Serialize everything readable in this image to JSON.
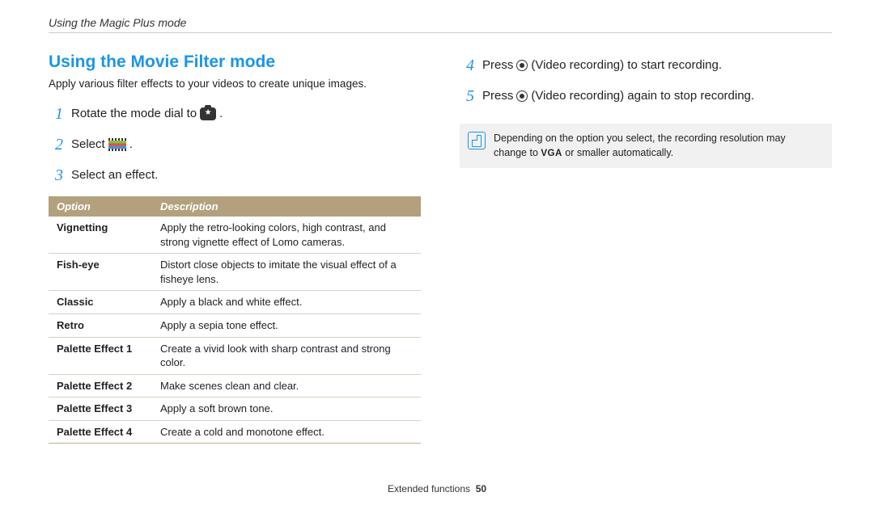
{
  "topline": "Using the Magic Plus mode",
  "heading": "Using the Movie Filter mode",
  "intro": "Apply various filter effects to your videos to create unique images.",
  "steps_left": [
    {
      "n": "1",
      "before": "Rotate the mode dial to ",
      "after": "."
    },
    {
      "n": "2",
      "before": "Select ",
      "after": "."
    },
    {
      "n": "3",
      "before": "Select an effect.",
      "after": ""
    }
  ],
  "steps_right": [
    {
      "n": "4",
      "before": "Press ",
      "mid": " (Video recording) to start recording.",
      "after": ""
    },
    {
      "n": "5",
      "before": "Press ",
      "mid": " (Video recording) again to stop recording.",
      "after": ""
    }
  ],
  "table": {
    "head_option": "Option",
    "head_desc": "Description",
    "rows": [
      {
        "name": "Vignetting",
        "desc": "Apply the retro-looking colors, high contrast, and strong vignette effect of Lomo cameras."
      },
      {
        "name": "Fish-eye",
        "desc": "Distort close objects to imitate the visual effect of a fisheye lens."
      },
      {
        "name": "Classic",
        "desc": "Apply a black and white effect."
      },
      {
        "name": "Retro",
        "desc": "Apply a sepia tone effect."
      },
      {
        "name": "Palette Effect 1",
        "desc": "Create a vivid look with sharp contrast and strong color."
      },
      {
        "name": "Palette Effect 2",
        "desc": "Make scenes clean and clear."
      },
      {
        "name": "Palette Effect 3",
        "desc": "Apply a soft brown tone."
      },
      {
        "name": "Palette Effect 4",
        "desc": "Create a cold and monotone effect."
      }
    ]
  },
  "note_before": "Depending on the option you select, the recording resolution may change to ",
  "note_vga": "VGA",
  "note_after": " or smaller automatically.",
  "footer_label": "Extended functions",
  "footer_page": "50"
}
